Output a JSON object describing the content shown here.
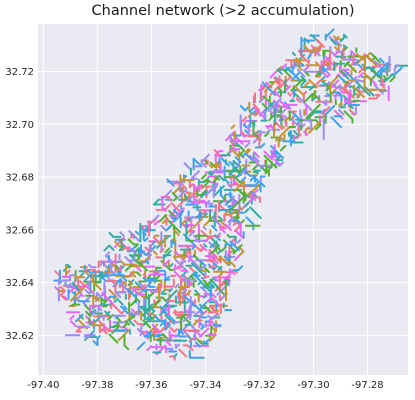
{
  "title": "Channel network (>2 accumulation)",
  "map": {
    "x_ticks": [
      "-97.40",
      "-97.38",
      "-97.36",
      "-97.34",
      "-97.32",
      "-97.30",
      "-97.28"
    ],
    "y_ticks": [
      "32.72",
      "32.70",
      "32.68",
      "32.66",
      "32.64",
      "32.62"
    ],
    "x_range": [
      -97.402,
      -97.265
    ],
    "y_range": [
      32.605,
      32.738
    ],
    "background": "#eaeaf2",
    "grid_color": "#ffffff",
    "grid": true,
    "channel_colors": [
      "#f77189",
      "#c69432",
      "#50b131",
      "#3ba3ec",
      "#e866f4",
      "#36ada4",
      "#9e8cf6"
    ],
    "extent_outline": [
      [
        -97.397,
        32.64
      ],
      [
        -97.392,
        32.646
      ],
      [
        -97.378,
        32.648
      ],
      [
        -97.372,
        32.658
      ],
      [
        -97.357,
        32.666
      ],
      [
        -97.352,
        32.678
      ],
      [
        -97.345,
        32.685
      ],
      [
        -97.335,
        32.69
      ],
      [
        -97.328,
        32.702
      ],
      [
        -97.322,
        32.712
      ],
      [
        -97.31,
        32.724
      ],
      [
        -97.3,
        32.733
      ],
      [
        -97.292,
        32.736
      ],
      [
        -97.286,
        32.728
      ],
      [
        -97.278,
        32.726
      ],
      [
        -97.268,
        32.722
      ],
      [
        -97.272,
        32.714
      ],
      [
        -97.288,
        32.704
      ],
      [
        -97.3,
        32.7
      ],
      [
        -97.308,
        32.692
      ],
      [
        -97.315,
        32.682
      ],
      [
        -97.322,
        32.67
      ],
      [
        -97.327,
        32.655
      ],
      [
        -97.33,
        32.64
      ],
      [
        -97.334,
        32.622
      ],
      [
        -97.343,
        32.615
      ],
      [
        -97.352,
        32.611
      ],
      [
        -97.358,
        32.614
      ],
      [
        -97.368,
        32.62
      ],
      [
        -97.378,
        32.62
      ],
      [
        -97.385,
        32.618
      ],
      [
        -97.39,
        32.624
      ],
      [
        -97.391,
        32.632
      ]
    ]
  }
}
